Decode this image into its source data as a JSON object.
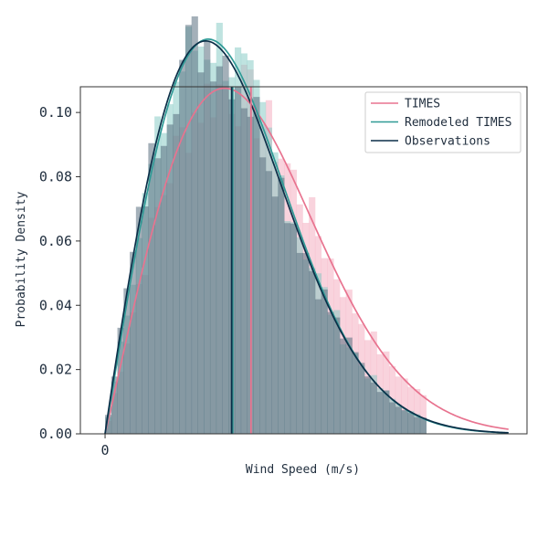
{
  "chart_data": {
    "type": "histogram-with-density",
    "title": "",
    "xlabel": "Wind Speed (m/s)",
    "ylabel": "Probability Density",
    "xlim": [
      -1.2,
      20.5
    ],
    "ylim": [
      0,
      0.108
    ],
    "x_ticks": [
      {
        "value": 0,
        "label": "0"
      }
    ],
    "y_ticks": [
      {
        "value": 0.0,
        "label": "0.00"
      },
      {
        "value": 0.02,
        "label": "0.02"
      },
      {
        "value": 0.04,
        "label": "0.04"
      },
      {
        "value": 0.06,
        "label": "0.06"
      },
      {
        "value": 0.08,
        "label": "0.08"
      },
      {
        "value": 0.1,
        "label": "0.10"
      }
    ],
    "legend": {
      "placement": "top-right"
    },
    "grid": false,
    "series": [
      {
        "name": "TIMES",
        "color": "#e8738f",
        "hist_color": "#f4a7bc",
        "hist_opacity": 0.5,
        "weibull_shape": 2.04,
        "weibull_scale": 8.08,
        "mean_line": 7.09
      },
      {
        "name": "Remodeled TIMES",
        "color": "#2f9a96",
        "hist_color": "#7fc7c2",
        "hist_opacity": 0.5,
        "weibull_shape": 2.02,
        "weibull_scale": 7.03,
        "mean_line": 6.2
      },
      {
        "name": "Observations",
        "color": "#0b2f48",
        "hist_color": "#5a7080",
        "hist_opacity": 0.55,
        "weibull_shape": 1.98,
        "weibull_scale": 6.97,
        "mean_line": 6.15
      }
    ],
    "histogram": {
      "bin_start": 0,
      "bin_width": 0.3,
      "bin_count": 52,
      "noise_seed": 7
    }
  }
}
